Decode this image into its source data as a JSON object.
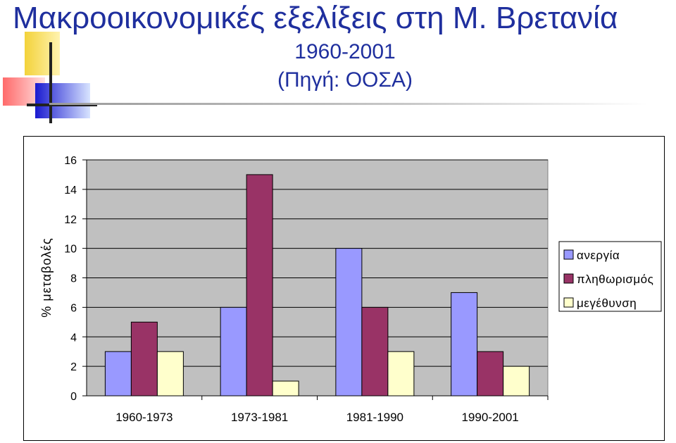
{
  "header": {
    "title": "Μακροοικονομικές εξελίξεις στη Μ. Βρετανία",
    "subtitle_period": "1960-2001",
    "subtitle_source": "(Πηγή: ΟΟΣΑ)"
  },
  "colors": {
    "title": "#1f2f9e",
    "plot_background": "#c0c0c0",
    "anergia": "#9999ff",
    "plithorismos": "#993366",
    "megethynsi": "#ffffcc"
  },
  "chart_data": {
    "type": "bar",
    "categories": [
      "1960-1973",
      "1973-1981",
      "1981-1990",
      "1990-2001"
    ],
    "series": [
      {
        "name": "ανεργία",
        "values": [
          3,
          6,
          10,
          7
        ]
      },
      {
        "name": "πληθωρισμός",
        "values": [
          5,
          15,
          6,
          3
        ]
      },
      {
        "name": "μεγέθυνση",
        "values": [
          3,
          1,
          3,
          2
        ]
      }
    ],
    "title": "",
    "xlabel": "",
    "ylabel": "% μεταβολές",
    "ylim": [
      0,
      16
    ],
    "yticks": [
      0,
      2,
      4,
      6,
      8,
      10,
      12,
      14,
      16
    ],
    "grid": true,
    "legend_position": "right"
  }
}
